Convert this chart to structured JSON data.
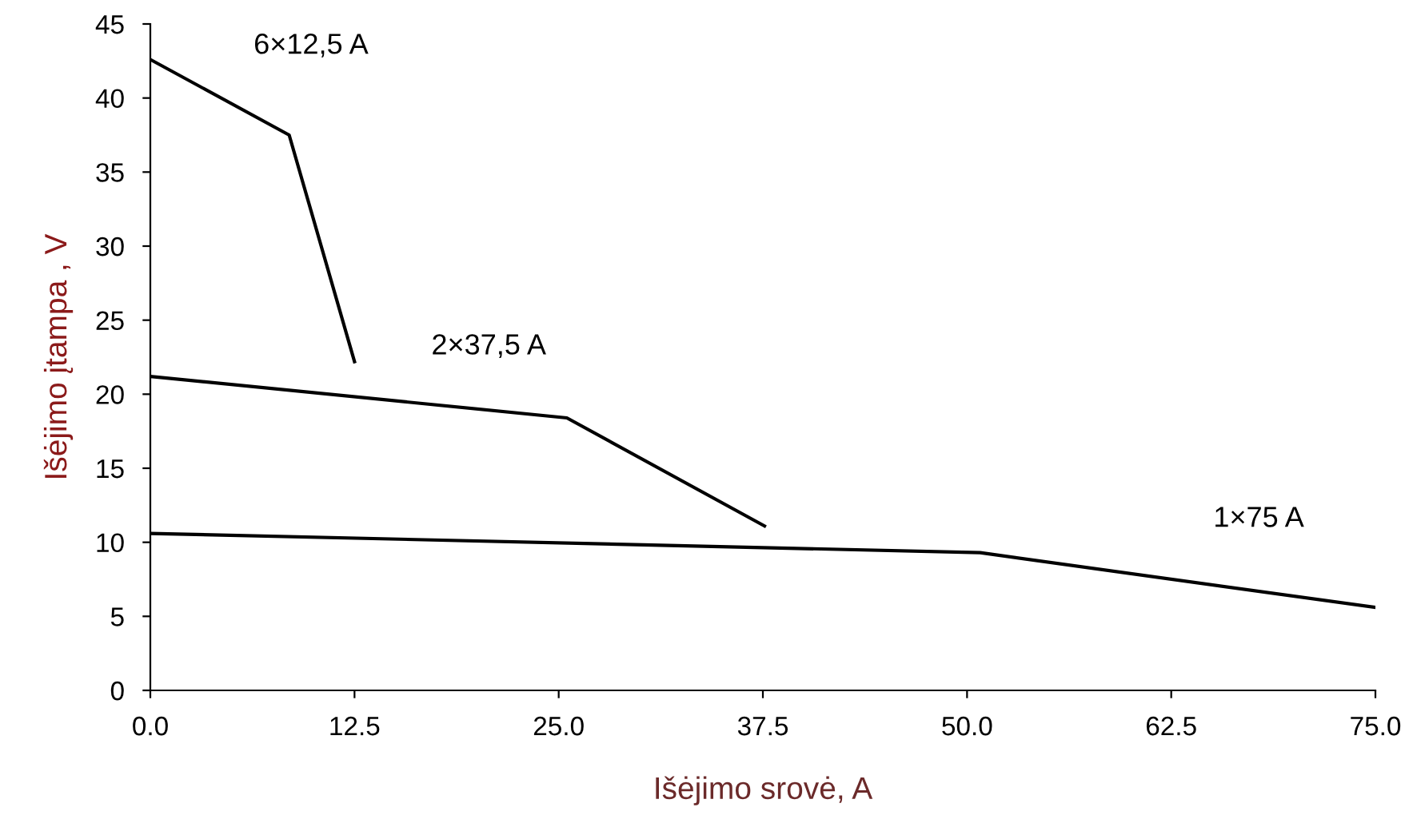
{
  "chart_data": {
    "type": "line",
    "xlabel": "Išėjimo srovė, A",
    "ylabel": "Išėjimo įtampa , V",
    "xlim": [
      0,
      75
    ],
    "ylim": [
      0,
      45
    ],
    "xticks": [
      {
        "value": 0,
        "label": "0.0"
      },
      {
        "value": 12.5,
        "label": "12.5"
      },
      {
        "value": 25,
        "label": "25.0"
      },
      {
        "value": 37.5,
        "label": "37.5"
      },
      {
        "value": 50,
        "label": "50.0"
      },
      {
        "value": 62.5,
        "label": "62.5"
      },
      {
        "value": 75,
        "label": "75.0"
      }
    ],
    "yticks": [
      0,
      5,
      10,
      15,
      20,
      25,
      30,
      35,
      40,
      45
    ],
    "grid": false,
    "legend": false,
    "marker": "none",
    "line_style": "solid",
    "series": [
      {
        "name": "6×12,5 A",
        "color": "#000000",
        "x": [
          0,
          8.5,
          12.5
        ],
        "values": [
          42.6,
          37.5,
          22.2
        ]
      },
      {
        "name": "2×37,5 A",
        "color": "#000000",
        "x": [
          0,
          25.5,
          37.6
        ],
        "values": [
          21.2,
          18.4,
          11.1
        ]
      },
      {
        "name": "1×75 A",
        "color": "#000000",
        "x": [
          0,
          50.8,
          75
        ],
        "values": [
          10.6,
          9.3,
          5.6
        ]
      }
    ]
  }
}
